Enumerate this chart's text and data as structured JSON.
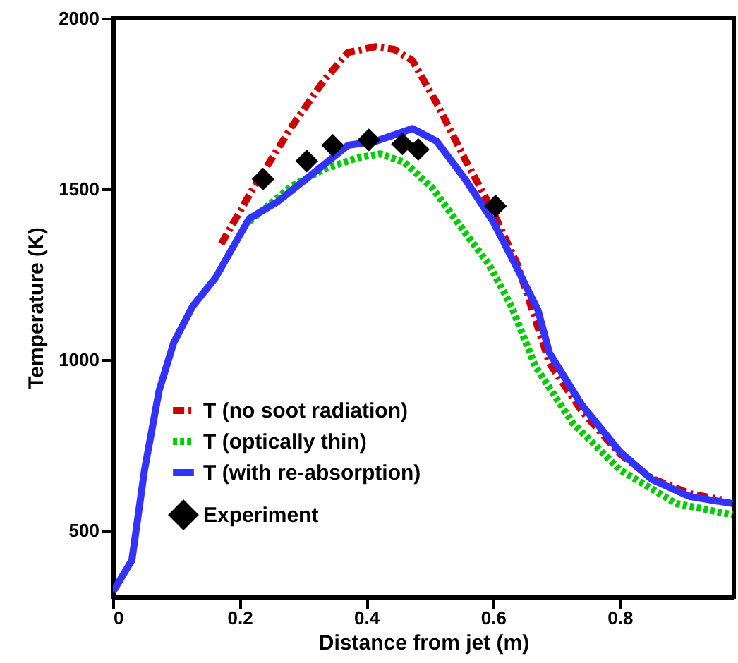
{
  "chart_data": {
    "type": "line",
    "xlabel": "Distance from jet (m)",
    "ylabel": "Temperature (K)",
    "xlim": [
      0,
      0.98
    ],
    "xticks": [
      0,
      0.2,
      0.4,
      0.6,
      0.8
    ],
    "ylim": [
      306,
      2000
    ],
    "yticks": [
      500,
      1000,
      1500,
      2000
    ],
    "grid": false,
    "legend": "bottom left",
    "series": [
      {
        "name": "T (no soot radiation)",
        "color": "#cc0000",
        "line_style": "dashdot",
        "x": [
          0.171,
          0.222,
          0.282,
          0.333,
          0.371,
          0.415,
          0.444,
          0.473,
          0.511,
          0.556,
          0.6,
          0.638,
          0.66,
          0.689,
          0.74,
          0.8,
          0.851,
          0.911,
          0.96
        ],
        "values": [
          1339,
          1504,
          1682,
          1818,
          1900,
          1917,
          1909,
          1876,
          1752,
          1587,
          1434,
          1281,
          1157,
          990,
          850,
          725,
          652,
          608,
          590
        ]
      },
      {
        "name": "T (optically thin)",
        "color": "#00cc00",
        "line_style": "dotted",
        "x": [
          0.215,
          0.282,
          0.333,
          0.385,
          0.422,
          0.46,
          0.504,
          0.548,
          0.593,
          0.629,
          0.667,
          0.726,
          0.8,
          0.889,
          0.978
        ],
        "values": [
          1405,
          1508,
          1558,
          1591,
          1603,
          1578,
          1504,
          1392,
          1281,
          1157,
          980,
          814,
          678,
          579,
          546
        ]
      },
      {
        "name": "T (with re-absorption)",
        "color": "#3333ff",
        "line_style": "solid",
        "x": [
          0,
          0.03,
          0.05,
          0.073,
          0.096,
          0.126,
          0.162,
          0.215,
          0.26,
          0.296,
          0.371,
          0.415,
          0.473,
          0.511,
          0.556,
          0.6,
          0.638,
          0.671,
          0.689,
          0.74,
          0.8,
          0.851,
          0.911,
          0.978
        ],
        "values": [
          320,
          413,
          678,
          910,
          1050,
          1157,
          1240,
          1413,
          1463,
          1516,
          1628,
          1640,
          1677,
          1640,
          1529,
          1405,
          1268,
          1145,
          1020,
          868,
          731,
          649,
          599,
          579
        ]
      },
      {
        "name": "Experiment",
        "type": "scatter",
        "marker": "diamond",
        "color": "#000000",
        "x": [
          0.237,
          0.306,
          0.347,
          0.404,
          0.457,
          0.482,
          0.604
        ],
        "values": [
          1529,
          1582,
          1628,
          1644,
          1632,
          1616,
          1450
        ]
      }
    ]
  }
}
